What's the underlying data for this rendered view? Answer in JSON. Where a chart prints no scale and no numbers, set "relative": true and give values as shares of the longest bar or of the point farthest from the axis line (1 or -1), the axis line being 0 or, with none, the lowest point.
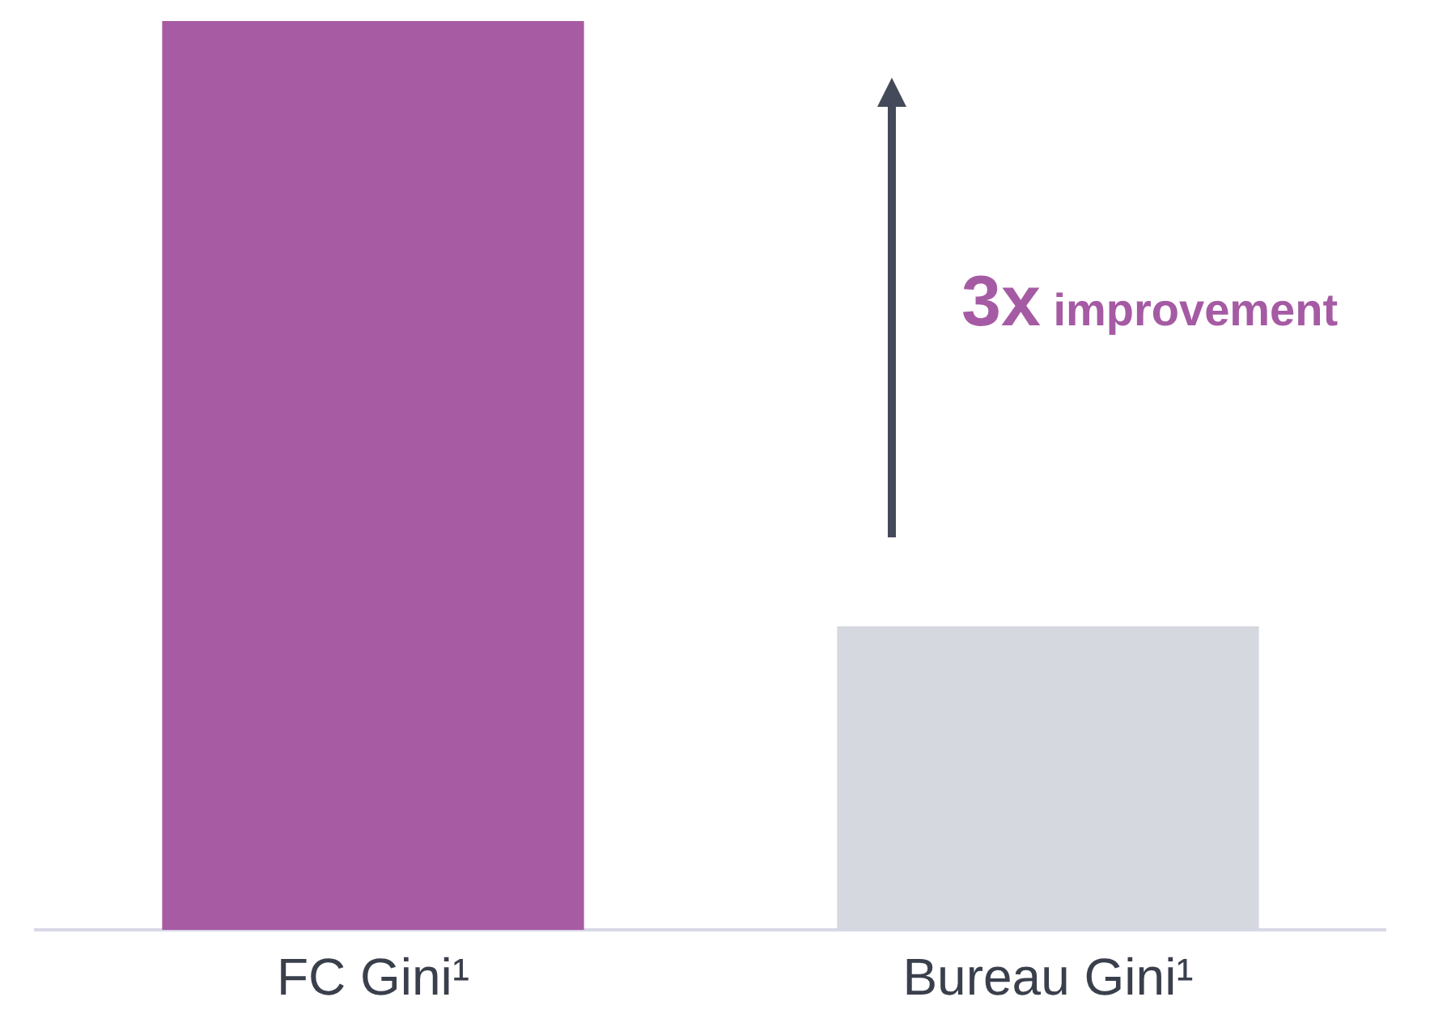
{
  "chart_data": {
    "type": "bar",
    "relative": true,
    "categories": [
      "FC Gini¹",
      "Bureau Gini¹"
    ],
    "values": [
      1,
      0.334
    ],
    "colors": [
      "#a75ba3",
      "#d5d8df"
    ],
    "annotations": [
      "3x improvement"
    ],
    "grid": false,
    "legend": false
  }
}
